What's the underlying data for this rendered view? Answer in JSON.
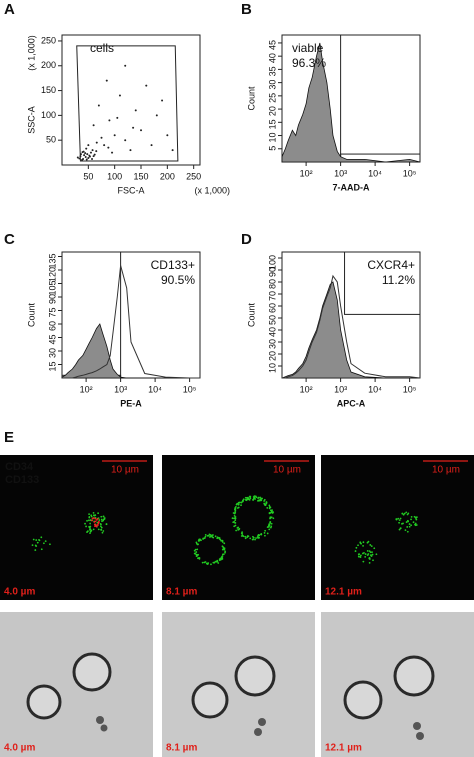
{
  "chart_data": [
    {
      "type": "scatter",
      "panel": "A",
      "xlabel": "FSC-A",
      "xunit": "(x 1,000)",
      "ylabel": "SSC-A",
      "yunit": "(x 1,000)",
      "xscale": "linear",
      "xlim": [
        0,
        262
      ],
      "ylim": [
        0,
        262
      ],
      "xticks": [
        50,
        100,
        150,
        200,
        250
      ],
      "yticks": [
        50,
        100,
        150,
        200,
        250
      ],
      "color": "#222222",
      "x": [
        30,
        35,
        40,
        42,
        45,
        48,
        50,
        52,
        55,
        38,
        60,
        65,
        44,
        36,
        58,
        33,
        47,
        53,
        41,
        39,
        62,
        57,
        46,
        80,
        100,
        120,
        90,
        150,
        70,
        110,
        180,
        60,
        130,
        160,
        200,
        75,
        95,
        140,
        85,
        170,
        210,
        120,
        50,
        105,
        135,
        190,
        66,
        88
      ],
      "values": [
        15,
        18,
        12,
        20,
        16,
        22,
        14,
        19,
        25,
        10,
        18,
        28,
        24,
        22,
        30,
        13,
        11,
        17,
        27,
        26,
        21,
        12,
        33,
        40,
        60,
        50,
        90,
        70,
        120,
        140,
        100,
        80,
        30,
        160,
        60,
        55,
        25,
        110,
        170,
        40,
        30,
        200,
        40,
        95,
        75,
        130,
        45,
        35
      ],
      "gate": {
        "x": [
          35,
          28,
          215,
          220
        ],
        "y": [
          8,
          240,
          240,
          8
        ]
      },
      "annotation": {
        "lines": [
          "cells"
        ],
        "side": "left"
      }
    },
    {
      "type": "area",
      "panel": "B",
      "xlabel": "7-AAD-A",
      "ylabel": "Count",
      "xscale": "log",
      "xlim": [
        20,
        200000
      ],
      "ylim": [
        0,
        48
      ],
      "xticks": [
        {
          "value": 100,
          "label": "10²"
        },
        {
          "value": 1000,
          "label": "10³"
        },
        {
          "value": 10000,
          "label": "10⁴"
        },
        {
          "value": 100000,
          "label": "10⁵"
        }
      ],
      "yticks": [
        5,
        10,
        15,
        20,
        25,
        30,
        35,
        40,
        45
      ],
      "x": [
        20,
        25,
        30,
        40,
        50,
        60,
        80,
        100,
        120,
        150,
        200,
        250,
        300,
        400,
        500,
        600,
        800,
        1000,
        1500,
        2000,
        5000,
        20000,
        100000,
        200000
      ],
      "series": [
        {
          "color": "#8c8c8c",
          "filled": true,
          "values": [
            2,
            5,
            8,
            12,
            10,
            14,
            18,
            22,
            28,
            32,
            40,
            45,
            38,
            30,
            20,
            10,
            4,
            2,
            1,
            1,
            1,
            0,
            1,
            0
          ]
        }
      ],
      "gates": [
        {
          "x0": 20,
          "x1": 1000,
          "y0": 0,
          "y1": 48
        },
        {
          "x0": 1000,
          "x1": 200000,
          "y0": 0,
          "y1": 3
        }
      ],
      "annotation": {
        "lines": [
          "viable",
          "96.3%"
        ],
        "side": "left"
      }
    },
    {
      "type": "area",
      "panel": "C",
      "xlabel": "PE-A",
      "ylabel": "Count",
      "xscale": "log",
      "xlim": [
        20,
        200000
      ],
      "ylim": [
        0,
        140
      ],
      "xticks": [
        {
          "value": 100,
          "label": "10²"
        },
        {
          "value": 1000,
          "label": "10³"
        },
        {
          "value": 10000,
          "label": "10⁴"
        },
        {
          "value": 100000,
          "label": "10⁵"
        }
      ],
      "yticks": [
        15,
        30,
        45,
        60,
        75,
        90,
        105,
        120,
        135
      ],
      "x": [
        20,
        25,
        30,
        40,
        50,
        60,
        80,
        100,
        120,
        150,
        200,
        250,
        300,
        400,
        500,
        600,
        800,
        1000,
        1500,
        2000,
        5000,
        20000,
        100000,
        200000
      ],
      "series": [
        {
          "color": "#8c8c8c",
          "filled": true,
          "values": [
            1,
            3,
            6,
            10,
            15,
            20,
            25,
            32,
            38,
            45,
            55,
            60,
            50,
            35,
            20,
            10,
            4,
            1,
            0,
            0,
            0,
            0,
            0,
            0
          ]
        },
        {
          "color": "#333333",
          "filled": false,
          "values": [
            0,
            0,
            0,
            0,
            1,
            2,
            3,
            4,
            5,
            6,
            8,
            10,
            12,
            15,
            25,
            50,
            90,
            125,
            100,
            40,
            5,
            1,
            0,
            0
          ]
        }
      ],
      "gates": [
        {
          "x0": 20,
          "x1": 1000,
          "y0": 0,
          "y1": 3
        },
        {
          "x0": 1000,
          "x1": 200000,
          "y0": 0,
          "y1": 140
        }
      ],
      "annotation": {
        "lines": [
          "CD133+",
          "90.5%"
        ],
        "side": "right"
      }
    },
    {
      "type": "area",
      "panel": "D",
      "xlabel": "APC-A",
      "ylabel": "Count",
      "xscale": "log",
      "xlim": [
        20,
        200000
      ],
      "ylim": [
        0,
        105
      ],
      "xticks": [
        {
          "value": 100,
          "label": "10²"
        },
        {
          "value": 1000,
          "label": "10³"
        },
        {
          "value": 10000,
          "label": "10⁴"
        },
        {
          "value": 100000,
          "label": "10⁵"
        }
      ],
      "yticks": [
        10,
        20,
        30,
        40,
        50,
        60,
        70,
        80,
        90,
        100
      ],
      "x": [
        20,
        25,
        30,
        40,
        50,
        60,
        80,
        100,
        120,
        150,
        200,
        250,
        300,
        400,
        500,
        600,
        800,
        1000,
        1500,
        2000,
        5000,
        20000,
        100000,
        200000
      ],
      "series": [
        {
          "color": "#8c8c8c",
          "filled": true,
          "values": [
            0,
            1,
            2,
            3,
            5,
            8,
            12,
            18,
            25,
            32,
            40,
            50,
            60,
            70,
            78,
            80,
            65,
            40,
            15,
            5,
            1,
            0,
            0,
            0
          ]
        },
        {
          "color": "#333333",
          "filled": false,
          "values": [
            0,
            0,
            1,
            2,
            4,
            6,
            10,
            15,
            22,
            30,
            38,
            48,
            58,
            68,
            75,
            85,
            80,
            60,
            30,
            12,
            4,
            1,
            1,
            0
          ]
        }
      ],
      "gates": [
        {
          "x0": 1300,
          "x1": 200000,
          "y0": 53,
          "y1": 105
        }
      ],
      "annotation": {
        "lines": [
          "CXCR4+",
          "11.2%"
        ],
        "side": "right"
      }
    }
  ],
  "panel_e": {
    "label": "E",
    "channels": [
      {
        "name": "CD34",
        "color": "#22cc22"
      },
      {
        "name": "CD133",
        "color": "#ee2222"
      }
    ],
    "fluorescence": [
      {
        "depth": "4.0 µm",
        "scale_bar": "10 µm"
      },
      {
        "depth": "8.1 µm",
        "scale_bar": "10 µm"
      },
      {
        "depth": "12.1 µm",
        "scale_bar": "10 µm"
      }
    ],
    "brightfield": [
      {
        "depth": "4.0 µm"
      },
      {
        "depth": "8.1 µm"
      },
      {
        "depth": "12.1 µm"
      }
    ]
  }
}
